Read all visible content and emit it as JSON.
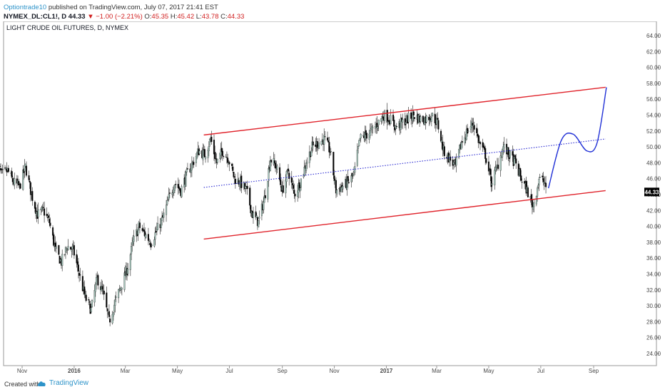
{
  "header": {
    "author": "Optiontrade10",
    "published": " published on TradingView.com, July 07, 2017 21:41 EST",
    "symbol": "NYMEX_DL:CL1!, D",
    "last": "44.33",
    "change": "▼ −1.00 (−2.21%)",
    "o_label": "O:",
    "o": "45.35",
    "h_label": "H:",
    "h": "45.42",
    "l_label": "L:",
    "l": "43.78",
    "c_label": "C:",
    "c": "44.33"
  },
  "footer": {
    "created": "Created with",
    "brand": "TradingView"
  },
  "colors": {
    "channel": "#e0232b",
    "midline": "#2b2bd1",
    "projection": "#1f2fd6",
    "up": "#a8c8be",
    "down": "#000000",
    "axis_text": "#4a4a4a",
    "price_tag_bg": "#000000"
  },
  "chart_data": {
    "type": "candlestick",
    "title": "LIGHT CRUDE OIL FUTURES, D, NYMEX",
    "ylim": [
      22,
      66
    ],
    "yticks": [
      "24.00",
      "26.00",
      "28.00",
      "30.00",
      "32.00",
      "34.00",
      "36.00",
      "38.00",
      "40.00",
      "42.00",
      "44.00",
      "46.00",
      "48.00",
      "50.00",
      "52.00",
      "54.00",
      "56.00",
      "58.00",
      "60.00",
      "62.00",
      "64.00"
    ],
    "xticks": [
      "Nov",
      "2016",
      "Mar",
      "May",
      "Jul",
      "Sep",
      "Nov",
      "2017",
      "Mar",
      "May",
      "Jul",
      "Sep"
    ],
    "last_price": "44.33",
    "close_path": [
      [
        "2015-10-01",
        48.5
      ],
      [
        "2015-10-08",
        46.5
      ],
      [
        "2015-10-15",
        47.0
      ],
      [
        "2015-10-22",
        45.5
      ],
      [
        "2015-10-29",
        45.0
      ],
      [
        "2015-11-05",
        47.5
      ],
      [
        "2015-11-12",
        44.0
      ],
      [
        "2015-11-19",
        41.5
      ],
      [
        "2015-11-26",
        42.0
      ],
      [
        "2015-12-03",
        40.5
      ],
      [
        "2015-12-10",
        37.0
      ],
      [
        "2015-12-17",
        35.5
      ],
      [
        "2015-12-24",
        37.5
      ],
      [
        "2015-12-31",
        37.0
      ],
      [
        "2016-01-07",
        34.0
      ],
      [
        "2016-01-14",
        31.0
      ],
      [
        "2016-01-21",
        29.5
      ],
      [
        "2016-01-28",
        33.5
      ],
      [
        "2016-02-04",
        31.5
      ],
      [
        "2016-02-11",
        28.0
      ],
      [
        "2016-02-18",
        30.5
      ],
      [
        "2016-02-25",
        32.5
      ],
      [
        "2016-03-03",
        34.5
      ],
      [
        "2016-03-10",
        38.0
      ],
      [
        "2016-03-17",
        40.0
      ],
      [
        "2016-03-24",
        39.0
      ],
      [
        "2016-03-31",
        38.0
      ],
      [
        "2016-04-07",
        39.5
      ],
      [
        "2016-04-14",
        41.0
      ],
      [
        "2016-04-21",
        43.5
      ],
      [
        "2016-04-28",
        45.5
      ],
      [
        "2016-05-05",
        44.5
      ],
      [
        "2016-05-12",
        46.5
      ],
      [
        "2016-05-19",
        48.0
      ],
      [
        "2016-05-26",
        49.5
      ],
      [
        "2016-06-02",
        49.0
      ],
      [
        "2016-06-09",
        51.0
      ],
      [
        "2016-06-16",
        48.0
      ],
      [
        "2016-06-23",
        49.5
      ],
      [
        "2016-06-30",
        48.5
      ],
      [
        "2016-07-07",
        46.0
      ],
      [
        "2016-07-14",
        45.5
      ],
      [
        "2016-07-21",
        44.5
      ],
      [
        "2016-07-28",
        41.5
      ],
      [
        "2016-08-04",
        40.5
      ],
      [
        "2016-08-11",
        43.5
      ],
      [
        "2016-08-18",
        48.5
      ],
      [
        "2016-08-25",
        47.5
      ],
      [
        "2016-09-01",
        44.5
      ],
      [
        "2016-09-08",
        47.0
      ],
      [
        "2016-09-15",
        44.0
      ],
      [
        "2016-09-22",
        45.5
      ],
      [
        "2016-09-29",
        48.0
      ],
      [
        "2016-10-06",
        50.0
      ],
      [
        "2016-10-13",
        50.5
      ],
      [
        "2016-10-20",
        51.0
      ],
      [
        "2016-10-27",
        49.5
      ],
      [
        "2016-11-03",
        44.5
      ],
      [
        "2016-11-10",
        45.0
      ],
      [
        "2016-11-17",
        45.5
      ],
      [
        "2016-11-24",
        46.5
      ],
      [
        "2016-12-01",
        51.0
      ],
      [
        "2016-12-08",
        51.5
      ],
      [
        "2016-12-15",
        52.0
      ],
      [
        "2016-12-22",
        53.0
      ],
      [
        "2016-12-29",
        54.0
      ],
      [
        "2017-01-05",
        53.5
      ],
      [
        "2017-01-12",
        52.5
      ],
      [
        "2017-01-19",
        53.0
      ],
      [
        "2017-01-26",
        53.5
      ],
      [
        "2017-02-02",
        54.0
      ],
      [
        "2017-02-09",
        53.5
      ],
      [
        "2017-02-16",
        53.5
      ],
      [
        "2017-02-23",
        54.0
      ],
      [
        "2017-03-02",
        53.0
      ],
      [
        "2017-03-09",
        49.5
      ],
      [
        "2017-03-16",
        48.5
      ],
      [
        "2017-03-23",
        47.5
      ],
      [
        "2017-03-30",
        50.5
      ],
      [
        "2017-04-06",
        52.0
      ],
      [
        "2017-04-13",
        53.0
      ],
      [
        "2017-04-20",
        50.5
      ],
      [
        "2017-04-27",
        49.0
      ],
      [
        "2017-05-04",
        45.5
      ],
      [
        "2017-05-11",
        47.5
      ],
      [
        "2017-05-18",
        50.0
      ],
      [
        "2017-05-25",
        49.0
      ],
      [
        "2017-06-01",
        48.0
      ],
      [
        "2017-06-08",
        46.0
      ],
      [
        "2017-06-15",
        44.5
      ],
      [
        "2017-06-22",
        42.5
      ],
      [
        "2017-06-29",
        46.0
      ],
      [
        "2017-07-06",
        45.5
      ],
      [
        "2017-07-07",
        44.33
      ]
    ],
    "channel_upper": [
      [
        "2016-06-01",
        51.5
      ],
      [
        "2017-09-15",
        57.5
      ]
    ],
    "channel_lower": [
      [
        "2016-06-01",
        38.4
      ],
      [
        "2017-09-15",
        44.5
      ]
    ],
    "channel_mid": [
      [
        "2016-06-01",
        44.9
      ],
      [
        "2017-09-15",
        51.0
      ]
    ],
    "projection": [
      [
        "2017-07-10",
        44.8
      ],
      [
        "2017-07-25",
        50.8
      ],
      [
        "2017-08-08",
        51.6
      ],
      [
        "2017-08-24",
        49.5
      ],
      [
        "2017-09-05",
        50.5
      ],
      [
        "2017-09-16",
        57.5
      ]
    ]
  }
}
